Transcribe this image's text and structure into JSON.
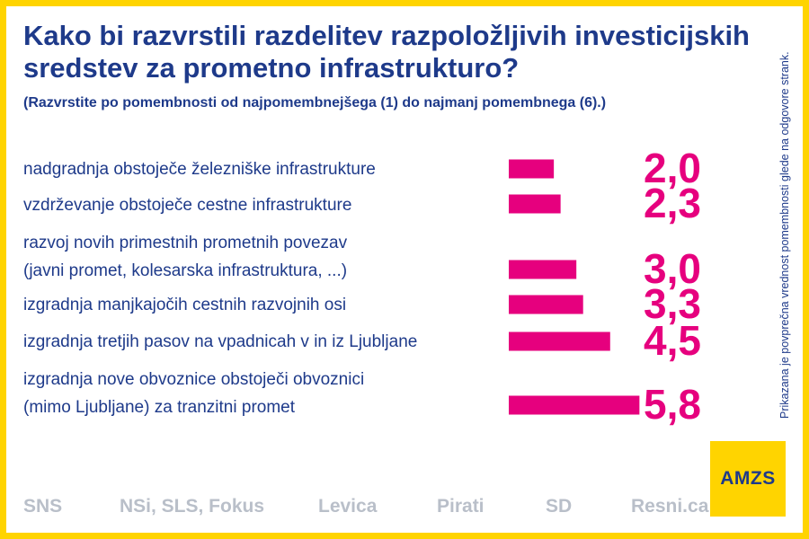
{
  "title": "Kako bi razvrstili razdelitev razpoložljivih investicijskih sredstev za prometno infrastrukturo?",
  "subtitle": "(Razvrstite po pomembnosti od najpomembnejšega (1) do najmanj pomembnega (6).)",
  "side_note": "Prikazana je povprečna vrednost pomembnosti glede na odgovore strank.",
  "logo_text": "AMZS",
  "parties": [
    "SNS",
    "NSi, SLS, Fokus",
    "Levica",
    "Pirati",
    "SD",
    "Resni.ca"
  ],
  "colors": {
    "accent": "#e6007e",
    "text": "#1e3a8a",
    "frame": "#ffd400",
    "muted": "#b9bfc9"
  },
  "chart_data": {
    "type": "bar",
    "orientation": "horizontal",
    "categories": [
      [
        "nadgradnja obstoječe železniške infrastrukture"
      ],
      [
        "vzdrževanje obstoječe cestne infrastrukture"
      ],
      [
        "razvoj novih primestnih prometnih povezav",
        "(javni promet, kolesarska infrastruktura, ...)"
      ],
      [
        "izgradnja manjkajočih cestnih razvojnih osi"
      ],
      [
        "izgradnja tretjih pasov na vpadnicah v in iz Ljubljane"
      ],
      [
        "izgradnja nove obvoznice obstoječi obvoznici",
        "(mimo Ljubljane) za tranzitni promet"
      ]
    ],
    "values": [
      2.0,
      2.3,
      3.0,
      3.3,
      4.5,
      5.8
    ],
    "value_labels": [
      "2,0",
      "2,3",
      "3,0",
      "3,3",
      "4,5",
      "5,8"
    ],
    "xlim": [
      0,
      6
    ]
  }
}
